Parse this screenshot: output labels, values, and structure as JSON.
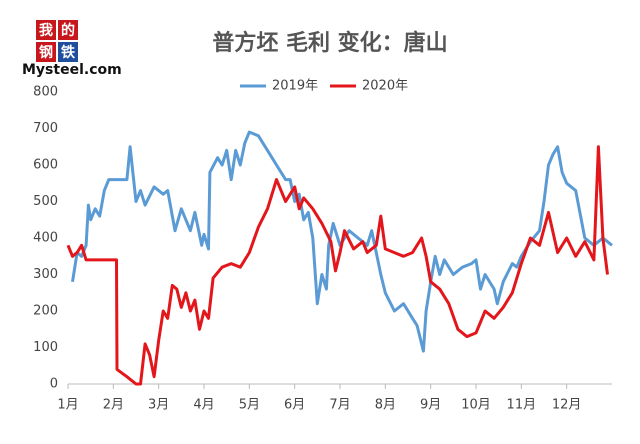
{
  "logo": {
    "chars": [
      "我",
      "的",
      "钢",
      "铁"
    ],
    "brand": "Mysteel.com"
  },
  "chart_data": {
    "type": "line",
    "title": "普方坯 毛利 变化：唐山",
    "xlim": [
      0,
      12
    ],
    "xticks": [
      {
        "value": 0,
        "label": "1月"
      },
      {
        "value": 1,
        "label": "2月"
      },
      {
        "value": 2,
        "label": "3月"
      },
      {
        "value": 3,
        "label": "4月"
      },
      {
        "value": 4,
        "label": "5月"
      },
      {
        "value": 5,
        "label": "6月"
      },
      {
        "value": 6,
        "label": "7月"
      },
      {
        "value": 7,
        "label": "8月"
      },
      {
        "value": 8,
        "label": "9月"
      },
      {
        "value": 9,
        "label": "10月"
      },
      {
        "value": 10,
        "label": "11月"
      },
      {
        "value": 11,
        "label": "12月"
      }
    ],
    "ylim": [
      0,
      800
    ],
    "yticks": [
      0,
      100,
      200,
      300,
      400,
      500,
      600,
      700,
      800
    ],
    "grid": false,
    "legend": "top",
    "series": [
      {
        "name": "2019年",
        "color": "#5b9bd5",
        "x": [
          0.1,
          0.2,
          0.3,
          0.4,
          0.45,
          0.5,
          0.6,
          0.7,
          0.8,
          0.9,
          1.0,
          1.1,
          1.2,
          1.3,
          1.37,
          1.5,
          1.6,
          1.7,
          1.9,
          2.1,
          2.2,
          2.36,
          2.5,
          2.7,
          2.8,
          2.95,
          3.0,
          3.1,
          3.13,
          3.3,
          3.4,
          3.5,
          3.6,
          3.7,
          3.8,
          3.9,
          4.0,
          4.2,
          4.4,
          4.6,
          4.8,
          4.9,
          5.0,
          5.1,
          5.2,
          5.3,
          5.4,
          5.5,
          5.6,
          5.7,
          5.75,
          5.85,
          6.0,
          6.2,
          6.4,
          6.6,
          6.7,
          6.9,
          7.0,
          7.2,
          7.4,
          7.6,
          7.7,
          7.84,
          7.9,
          8.0,
          8.1,
          8.2,
          8.3,
          8.5,
          8.7,
          8.9,
          9.0,
          9.1,
          9.2,
          9.4,
          9.47,
          9.6,
          9.8,
          9.9,
          10.0,
          10.2,
          10.4,
          10.5,
          10.6,
          10.7,
          10.8,
          10.9,
          11.0,
          11.2,
          11.4,
          11.6,
          11.8,
          12.0
        ],
        "values": [
          280,
          360,
          350,
          380,
          490,
          450,
          480,
          460,
          530,
          560,
          560,
          560,
          560,
          560,
          650,
          500,
          530,
          490,
          540,
          520,
          530,
          420,
          480,
          420,
          470,
          380,
          410,
          370,
          580,
          620,
          600,
          640,
          560,
          640,
          600,
          660,
          690,
          680,
          640,
          600,
          560,
          560,
          500,
          520,
          450,
          470,
          400,
          220,
          300,
          260,
          380,
          440,
          380,
          420,
          400,
          380,
          420,
          300,
          250,
          200,
          220,
          180,
          160,
          90,
          200,
          280,
          350,
          300,
          340,
          300,
          320,
          330,
          340,
          260,
          300,
          260,
          220,
          280,
          330,
          320,
          350,
          390,
          420,
          500,
          600,
          630,
          650,
          580,
          550,
          530,
          400,
          380,
          400,
          380
        ]
      },
      {
        "name": "2020年",
        "color": "#e3161b",
        "x": [
          0.0,
          0.1,
          0.2,
          0.3,
          0.4,
          0.6,
          1.0,
          1.07,
          1.08,
          1.3,
          1.5,
          1.6,
          1.7,
          1.8,
          1.9,
          2.0,
          2.1,
          2.2,
          2.3,
          2.4,
          2.5,
          2.6,
          2.7,
          2.8,
          2.9,
          3.0,
          3.1,
          3.2,
          3.4,
          3.6,
          3.8,
          4.0,
          4.2,
          4.4,
          4.6,
          4.8,
          5.0,
          5.1,
          5.2,
          5.4,
          5.6,
          5.8,
          5.9,
          6.0,
          6.1,
          6.3,
          6.5,
          6.6,
          6.8,
          6.9,
          7.0,
          7.2,
          7.4,
          7.6,
          7.8,
          7.9,
          8.0,
          8.2,
          8.4,
          8.6,
          8.8,
          9.0,
          9.2,
          9.4,
          9.6,
          9.8,
          10.0,
          10.2,
          10.4,
          10.6,
          10.8,
          11.0,
          11.2,
          11.4,
          11.6,
          11.7,
          11.8,
          11.9
        ],
        "values": [
          380,
          350,
          360,
          380,
          340,
          340,
          340,
          340,
          40,
          20,
          0,
          0,
          110,
          80,
          20,
          120,
          200,
          180,
          270,
          260,
          210,
          250,
          200,
          230,
          150,
          200,
          180,
          290,
          320,
          330,
          320,
          360,
          430,
          480,
          560,
          500,
          540,
          480,
          510,
          480,
          440,
          390,
          310,
          360,
          420,
          370,
          390,
          360,
          380,
          460,
          370,
          360,
          350,
          360,
          400,
          350,
          280,
          260,
          220,
          150,
          130,
          140,
          200,
          180,
          210,
          250,
          330,
          400,
          380,
          470,
          360,
          400,
          350,
          390,
          340,
          650,
          400,
          300
        ]
      }
    ]
  }
}
